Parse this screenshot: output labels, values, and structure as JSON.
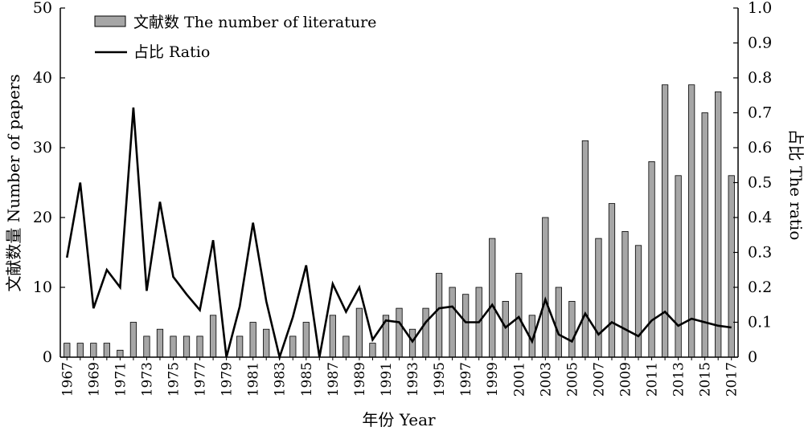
{
  "chart_data": {
    "type": "bar",
    "xlabel": "年份 Year",
    "ylabel": "文献数量 Number of papers",
    "y2label": "占比 The ratio",
    "ylim": [
      0,
      50
    ],
    "y2lim": [
      0,
      1.0
    ],
    "yticks": [
      "0",
      "10",
      "20",
      "30",
      "40",
      "50"
    ],
    "y2ticks": [
      "0",
      "0.1",
      "0.2",
      "0.3",
      "0.4",
      "0.5",
      "0.6",
      "0.7",
      "0.8",
      "0.9",
      "1.0"
    ],
    "legend_position": "top-left",
    "grid": false,
    "x": [
      1967,
      1968,
      1969,
      1970,
      1971,
      1972,
      1973,
      1974,
      1975,
      1976,
      1977,
      1978,
      1979,
      1980,
      1981,
      1982,
      1983,
      1984,
      1985,
      1986,
      1987,
      1988,
      1989,
      1990,
      1991,
      1992,
      1993,
      1994,
      1995,
      1996,
      1997,
      1998,
      1999,
      2000,
      2001,
      2002,
      2003,
      2004,
      2005,
      2006,
      2007,
      2008,
      2009,
      2010,
      2011,
      2012,
      2013,
      2014,
      2015,
      2016,
      2017
    ],
    "x_tick_labels": [
      "1967",
      "1969",
      "1971",
      "1973",
      "1975",
      "1977",
      "1979",
      "1981",
      "1983",
      "1985",
      "1987",
      "1989",
      "1991",
      "1993",
      "1995",
      "1997",
      "1999",
      "2001",
      "2003",
      "2005",
      "2007",
      "2009",
      "2011",
      "2013",
      "2015",
      "2017"
    ],
    "series": [
      {
        "name": "文献数 The number of literature",
        "type": "bar",
        "axis": "left",
        "color": "#a6a6a6",
        "values": [
          2,
          2,
          2,
          2,
          1,
          5,
          3,
          4,
          3,
          3,
          3,
          6,
          0,
          3,
          5,
          4,
          0,
          3,
          5,
          0,
          6,
          3,
          7,
          2,
          6,
          7,
          4,
          7,
          12,
          10,
          9,
          10,
          17,
          8,
          12,
          6,
          20,
          10,
          8,
          31,
          17,
          22,
          18,
          16,
          28,
          39,
          26,
          39,
          35,
          38,
          26
        ]
      },
      {
        "name": "占比 Ratio",
        "type": "line",
        "axis": "right",
        "color": "#000000",
        "values": [
          0.285,
          0.5,
          0.14,
          0.25,
          0.2,
          0.715,
          0.19,
          0.445,
          0.23,
          0.18,
          0.135,
          0.335,
          0,
          0.145,
          0.385,
          0.16,
          0,
          0.115,
          0.263,
          0,
          0.21,
          0.13,
          0.2,
          0.05,
          0.105,
          0.1,
          0.045,
          0.1,
          0.14,
          0.145,
          0.1,
          0.1,
          0.15,
          0.085,
          0.115,
          0.045,
          0.165,
          0.065,
          0.045,
          0.125,
          0.065,
          0.1,
          0.08,
          0.06,
          0.105,
          0.13,
          0.09,
          0.11,
          0.1,
          0.09,
          0.085
        ]
      }
    ]
  }
}
